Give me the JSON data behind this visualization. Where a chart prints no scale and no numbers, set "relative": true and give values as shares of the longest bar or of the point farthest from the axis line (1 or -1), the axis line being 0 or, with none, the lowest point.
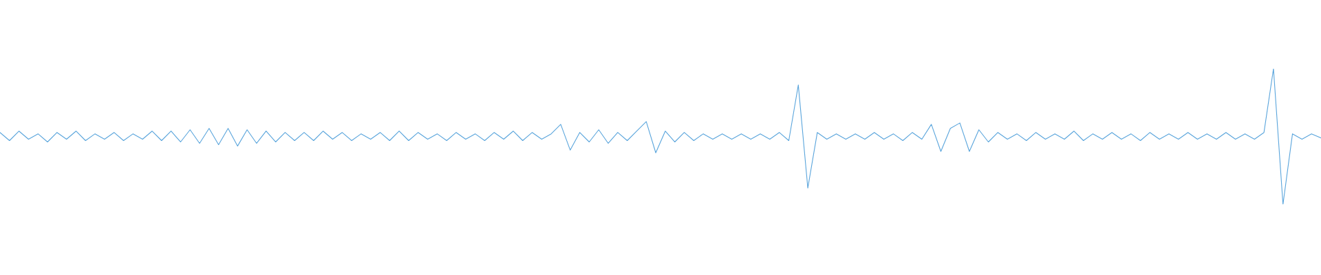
{
  "chart_data": {
    "type": "line",
    "relative": true,
    "color": "#5aa5dc",
    "line_style": "solid",
    "marker": "none",
    "tick_labels": false,
    "categories": [
      null,
      null,
      null,
      null,
      null,
      null,
      null,
      null,
      null,
      null,
      null,
      null,
      null,
      null,
      null,
      null,
      null,
      null,
      null,
      null,
      null,
      null,
      null,
      null,
      null,
      null,
      null,
      null,
      null,
      null,
      null,
      null,
      null,
      null,
      null,
      null,
      null,
      null,
      null,
      null,
      null,
      null,
      null,
      null,
      null,
      null,
      null,
      null,
      null,
      null,
      null,
      null,
      null,
      null,
      null,
      null,
      null,
      null,
      null,
      null,
      null,
      null,
      null,
      null,
      null,
      null,
      null,
      null,
      null,
      null,
      null,
      null,
      null,
      null,
      null,
      null,
      null,
      null,
      null,
      null,
      null,
      null,
      null,
      null,
      null,
      null,
      null,
      null,
      null,
      null,
      null,
      null,
      null,
      null,
      null,
      null,
      null,
      null,
      null,
      null,
      null,
      null,
      null,
      null,
      null,
      null,
      null,
      null,
      null,
      null,
      null,
      null,
      null,
      null,
      null,
      null,
      null,
      null,
      null,
      null,
      null,
      null,
      null,
      null,
      null,
      null,
      null,
      null,
      null,
      null,
      null,
      null,
      null,
      null,
      null,
      null,
      null,
      null,
      null,
      null
    ],
    "values": [
      0.53,
      0.47,
      0.54,
      0.48,
      0.52,
      0.46,
      0.53,
      0.48,
      0.54,
      0.47,
      0.52,
      0.48,
      0.53,
      0.47,
      0.52,
      0.48,
      0.54,
      0.47,
      0.54,
      0.46,
      0.55,
      0.45,
      0.56,
      0.44,
      0.56,
      0.43,
      0.55,
      0.45,
      0.54,
      0.46,
      0.53,
      0.47,
      0.53,
      0.47,
      0.54,
      0.48,
      0.53,
      0.47,
      0.52,
      0.48,
      0.53,
      0.47,
      0.54,
      0.47,
      0.53,
      0.48,
      0.52,
      0.47,
      0.53,
      0.48,
      0.52,
      0.47,
      0.53,
      0.48,
      0.54,
      0.47,
      0.53,
      0.48,
      0.52,
      0.59,
      0.4,
      0.53,
      0.46,
      0.55,
      0.45,
      0.53,
      0.47,
      0.54,
      0.61,
      0.38,
      0.54,
      0.46,
      0.53,
      0.47,
      0.52,
      0.48,
      0.52,
      0.48,
      0.52,
      0.48,
      0.52,
      0.48,
      0.53,
      0.47,
      0.88,
      0.12,
      0.53,
      0.48,
      0.52,
      0.48,
      0.52,
      0.48,
      0.53,
      0.48,
      0.52,
      0.47,
      0.53,
      0.48,
      0.59,
      0.39,
      0.56,
      0.6,
      0.39,
      0.55,
      0.46,
      0.53,
      0.48,
      0.52,
      0.47,
      0.53,
      0.48,
      0.52,
      0.48,
      0.54,
      0.47,
      0.52,
      0.48,
      0.53,
      0.48,
      0.52,
      0.47,
      0.53,
      0.48,
      0.52,
      0.48,
      0.53,
      0.48,
      0.52,
      0.48,
      0.53,
      0.48,
      0.52,
      0.48,
      0.53,
      1.0,
      0.0,
      0.52,
      0.48,
      0.52,
      0.49
    ]
  }
}
